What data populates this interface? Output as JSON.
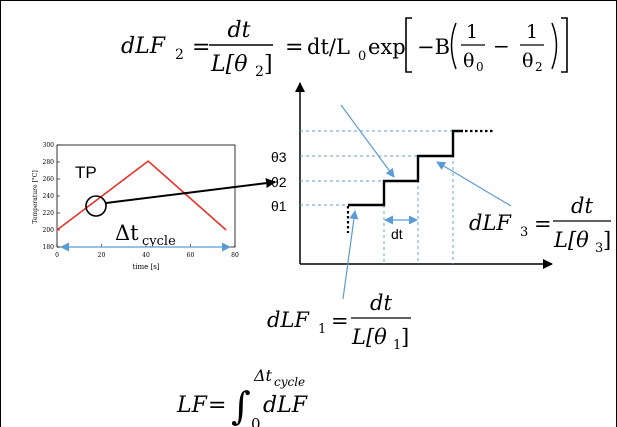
{
  "formulas": {
    "dlf2": {
      "lhs_d": "dLF",
      "lhs_sub": "2",
      "eq1": "=",
      "num": "dt",
      "den_L": "L[θ",
      "den_sub": "2",
      "den_close": "]",
      "eq2": "=",
      "mid": "dt/L",
      "mid_sub": "0",
      "exp": "exp",
      "minus_b": "−B",
      "one_a": "1",
      "theta_a": "θ",
      "theta_a_sub": "0",
      "minus": "−",
      "one_b": "1",
      "theta_b": "θ",
      "theta_b_sub": "2"
    },
    "dlf1": {
      "lhs_d": "dLF",
      "lhs_sub": "1",
      "eq": "=",
      "num": "dt",
      "den_L": "L[θ",
      "den_sub": "1",
      "den_close": "]"
    },
    "dlf3": {
      "lhs_d": "dLF",
      "lhs_sub": "3",
      "eq": "=",
      "num": "dt",
      "den_L": "L[θ",
      "den_sub": "3",
      "den_close": "]"
    },
    "lf": {
      "lhs": "LF",
      "eq": "=",
      "integral": "∫",
      "upper": "Δt",
      "upper_sub": "cycle",
      "lower": "0",
      "body": "dLF"
    }
  },
  "temperature_plot": {
    "label": "TP",
    "ylabel": "Temperature [°C]",
    "xlabel": "time [s]",
    "cycle_label": "Δt",
    "cycle_sub": "cycle",
    "color_curve": "#e8332a",
    "color_arrow": "#5b9bd5"
  },
  "step_plot": {
    "theta_labels": [
      "θ1",
      "θ2",
      "θ3"
    ],
    "dt_label": "dt",
    "guide_color": "#5b9bd5"
  },
  "chart_data": {
    "type": "line",
    "xlabel": "time [s]",
    "ylabel": "Temperature [°C]",
    "xlim": [
      0,
      80
    ],
    "ylim": [
      180,
      300
    ],
    "xticks": [
      "0",
      "20",
      "40",
      "60",
      "80"
    ],
    "yticks": [
      "180",
      "200",
      "220",
      "240",
      "260",
      "280",
      "300"
    ],
    "series": [
      {
        "x": [
          0,
          41,
          76
        ],
        "y": [
          200,
          281,
          200
        ]
      }
    ]
  }
}
